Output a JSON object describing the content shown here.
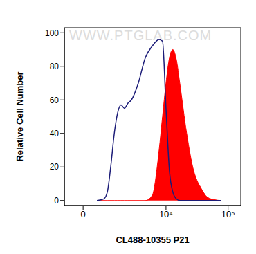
{
  "chart_data": {
    "type": "area",
    "xlabel": "CL488-10355 P21",
    "ylabel": "Relative Cell Number",
    "annotations": [
      "WWW.PTGLAB.COM"
    ],
    "xlim": [
      -700,
      160000
    ],
    "xticks": [
      0,
      {
        "value": 10000,
        "label": "10⁴"
      },
      {
        "value": 100000,
        "label": "10⁵"
      }
    ],
    "ylim": [
      -3,
      103
    ],
    "yticks": [
      0,
      20,
      40,
      60,
      80,
      100
    ],
    "grid": false,
    "x": [
      495,
      785,
      950,
      1125,
      1330,
      1535,
      1780,
      2045,
      2360,
      2710,
      3535,
      4595,
      5970,
      7730,
      8780,
      10000,
      11350,
      12900,
      14700,
      16690,
      21560,
      27830,
      31600,
      35950,
      46450,
      60000,
      77500
    ],
    "series": [
      {
        "type": "line",
        "color": "#1c1c78",
        "values": [
          0,
          1,
          5,
          20,
          40,
          52,
          57,
          55,
          58,
          60,
          70,
          85,
          92,
          96,
          95,
          55,
          18,
          5,
          1,
          0,
          0,
          0,
          0,
          0,
          0,
          0,
          0
        ]
      },
      {
        "type": "area",
        "color": "#ff0000",
        "values": [
          0,
          0,
          0,
          0,
          0,
          0,
          0,
          0,
          0,
          0,
          0,
          0,
          3,
          30,
          50,
          70,
          85,
          90,
          84,
          70,
          40,
          18,
          12,
          8,
          2,
          0.5,
          0
        ]
      }
    ]
  }
}
